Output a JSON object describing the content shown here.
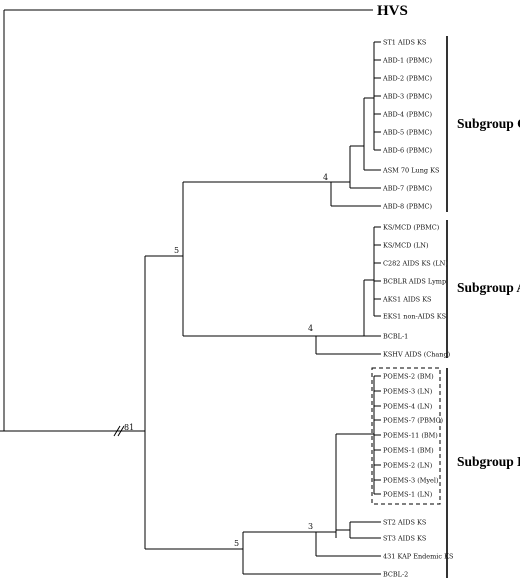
{
  "outgroup": "HVS",
  "root_bootstrap": "81",
  "subgroups": [
    {
      "label": "Subgroup C",
      "bootstrap": "4",
      "leaves": [
        "ST1 AIDS KS",
        "ABD-1 (PBMC)",
        "ABD-2 (PBMC)",
        "ABD-3 (PBMC)",
        "ABD-4 (PBMC)",
        "ABD-5 (PBMC)",
        "ABD-6 (PBMC)",
        "ASM 70 Lung KS",
        "ABD-7 (PBMC)",
        "ABD-8 (PBMC)"
      ]
    },
    {
      "label": "Subgroup A",
      "bootstrap": "4",
      "leaves": [
        "KS/MCD (PBMC)",
        "KS/MCD (LN)",
        "C282 AIDS KS (LN)",
        "BCBLR AIDS Lymp",
        "AKS1 AIDS KS",
        "EKS1 non-AIDS KS",
        "BCBL-1",
        "KSHV AIDS (Chang)"
      ]
    },
    {
      "label": "Subgroup B",
      "bootstrap": "3",
      "leaves": [
        "POEMS-2 (BM)",
        "POEMS-3 (LN)",
        "POEMS-4 (LN)",
        "POEMS-7 (PBMC)",
        "POEMS-11 (BM)",
        "POEMS-1 (BM)",
        "POEMS-2 (LN)",
        "POEMS-3 (Myel)",
        "POEMS-1 (LN)",
        "ST2 AIDS KS",
        "ST3 AIDS KS",
        "431 KAP Endemic KS",
        "BCBL-2"
      ]
    }
  ],
  "ca_bootstrap": "5",
  "b_bootstrap": "5"
}
